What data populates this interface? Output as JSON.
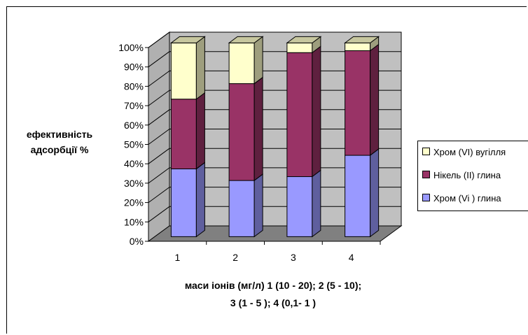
{
  "chart_data": {
    "type": "bar",
    "stacked": true,
    "three_d": true,
    "categories": [
      "1",
      "2",
      "3",
      "4"
    ],
    "series": [
      {
        "name": "Хром (Vi ) глина",
        "values": [
          35,
          29,
          31,
          42
        ],
        "color": "#9999ff"
      },
      {
        "name": "Нікель (II) глина",
        "values": [
          36,
          50,
          64,
          54
        ],
        "color": "#993366"
      },
      {
        "name": "Хром (VI) вугілля",
        "values": [
          29,
          21,
          5,
          4
        ],
        "color": "#ffffcc"
      }
    ],
    "y_ticks": [
      "0%",
      "10%",
      "20%",
      "30%",
      "40%",
      "50%",
      "60%",
      "70%",
      "80%",
      "90%",
      "100%"
    ],
    "ylim": [
      0,
      100
    ],
    "ylabel_lines": [
      "ефективність",
      "адсорбції %"
    ],
    "xlabel_lines": [
      "маси іонів (мг/л) 1 (10 - 20); 2 (5 - 10);",
      "3 (1 - 5 ); 4 (0,1- 1 )"
    ],
    "grid": true,
    "legend_position": "right"
  }
}
